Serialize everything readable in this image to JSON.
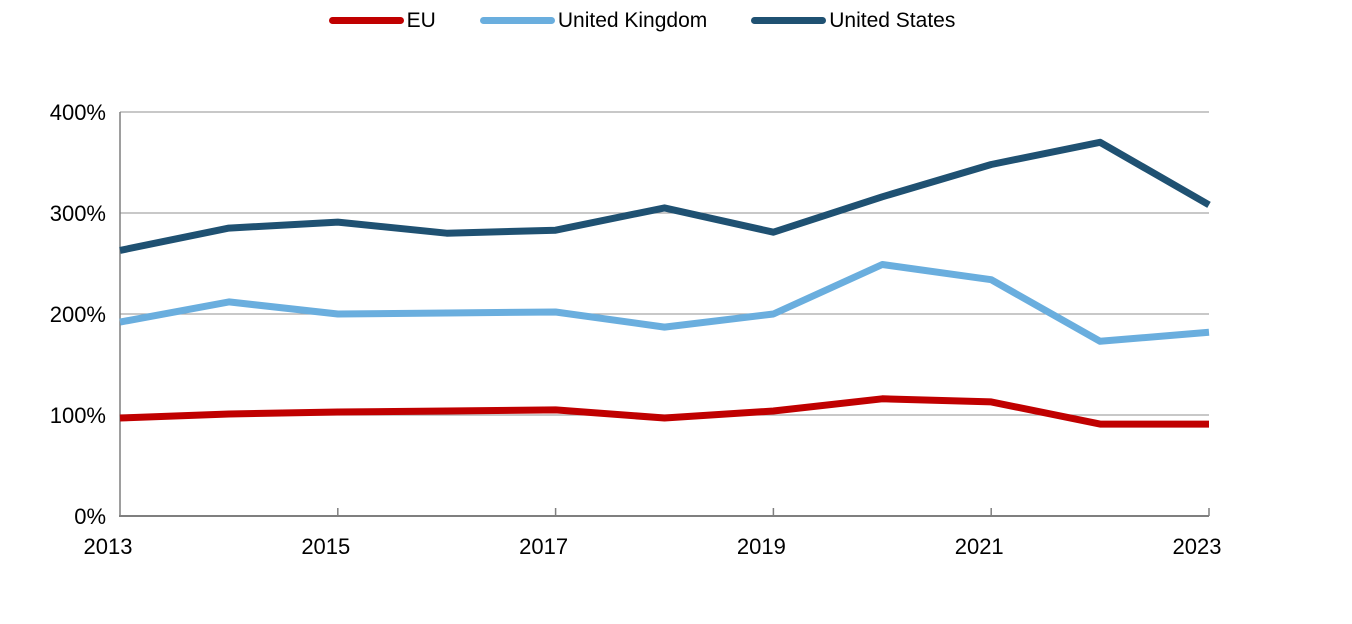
{
  "chart_data": {
    "type": "line",
    "x": [
      2013,
      2014,
      2015,
      2016,
      2017,
      2018,
      2019,
      2020,
      2021,
      2022,
      2023
    ],
    "series": [
      {
        "name": "EU",
        "color": "#c00000",
        "values": [
          97,
          101,
          103,
          104,
          105,
          97,
          104,
          116,
          113,
          91,
          91
        ]
      },
      {
        "name": "United Kingdom",
        "color": "#6aaede",
        "values": [
          192,
          212,
          200,
          201,
          202,
          187,
          200,
          249,
          234,
          173,
          182
        ]
      },
      {
        "name": "United States",
        "color": "#1f5172",
        "values": [
          263,
          285,
          291,
          280,
          283,
          305,
          281,
          316,
          348,
          370,
          308
        ]
      }
    ],
    "title": "",
    "xlabel": "",
    "ylabel": "",
    "ylim": [
      0,
      400
    ],
    "y_tick_labels": [
      "0%",
      "100%",
      "200%",
      "300%",
      "400%"
    ],
    "x_tick_labels": [
      "2013",
      "2015",
      "2017",
      "2019",
      "2021",
      "2023"
    ],
    "x_tick_years": [
      2013,
      2015,
      2017,
      2019,
      2021,
      2023
    ],
    "grid": "horizontal",
    "legend_position": "top-center"
  },
  "colors": {
    "grid": "#a6a6a6",
    "axis": "#7f7f7f",
    "text": "#000000",
    "background": "#ffffff"
  }
}
